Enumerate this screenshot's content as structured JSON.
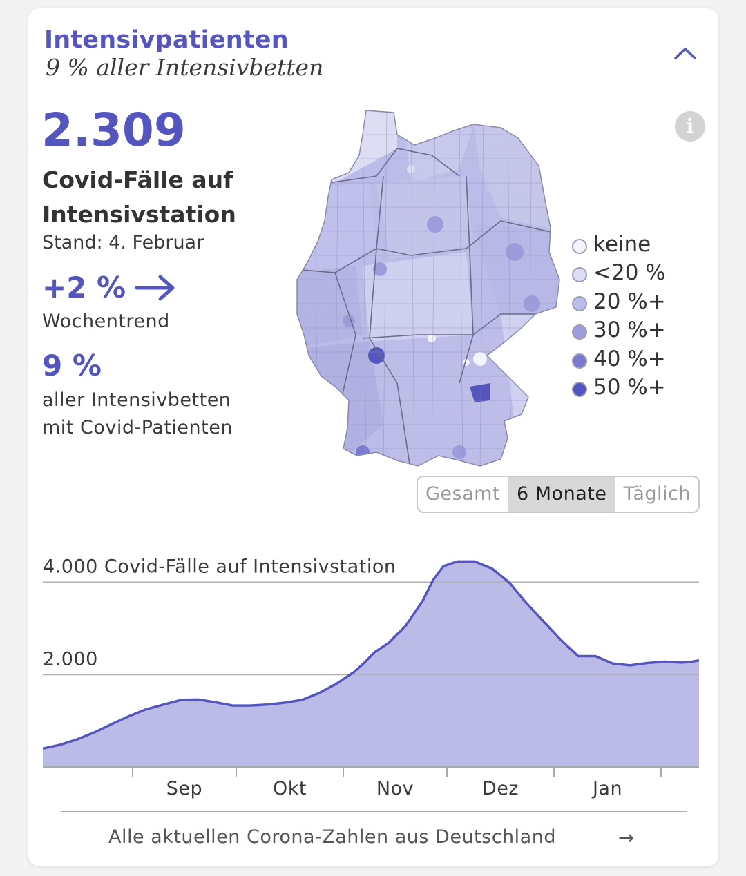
{
  "header": {
    "title": "Intensivpatienten",
    "subtitle": "9 % aller Intensivbetten"
  },
  "summary": {
    "count": "2.309",
    "count_label": "Covid-Fälle auf Intensivstation",
    "date_label": "Stand: 4. Februar",
    "trend_value": "+2 %",
    "trend_label": "Wochentrend",
    "share_value": "9 %",
    "share_label_line1": "aller Intensivbetten",
    "share_label_line2": "mit Covid-Patienten"
  },
  "map": {
    "legend": [
      {
        "label": "keine",
        "color": "#f4f4fb"
      },
      {
        "label": "<20 %",
        "color": "#dcdcf2"
      },
      {
        "label": "20 %+",
        "color": "#bcbce8"
      },
      {
        "label": "30 %+",
        "color": "#9c9cdb"
      },
      {
        "label": "40 %+",
        "color": "#7a7ad0"
      },
      {
        "label": "50 %+",
        "color": "#5456bd"
      }
    ]
  },
  "range_tabs": {
    "items": [
      "Gesamt",
      "6 Monate",
      "Täglich"
    ],
    "selected": "6 Monate"
  },
  "footer": {
    "link_text": "Alle aktuellen Corona-Zahlen aus Deutschland",
    "arrow": "→"
  },
  "colors": {
    "accent": "#5456bd",
    "area_fill": "#bbbbe8",
    "area_line": "#5456bd"
  },
  "chart_data": {
    "type": "area",
    "title": "Covid-Fälle auf Intensivstation",
    "gridline_labels": [
      {
        "value": 4000,
        "label": "4.000 Covid-Fälle auf Intensivstation"
      },
      {
        "value": 2000,
        "label": "2.000"
      }
    ],
    "xtick_labels": [
      "Sep",
      "Okt",
      "Nov",
      "Dez",
      "Jan"
    ],
    "x_range_days": [
      0,
      190
    ],
    "month_boundaries_days": [
      26,
      56,
      87,
      117,
      148,
      179
    ],
    "month_label_days": [
      41,
      71.5,
      102,
      132.5,
      163.5
    ],
    "ylim": [
      0,
      4800
    ],
    "series": [
      {
        "name": "Covid-Fälle auf Intensivstation",
        "x": [
          0,
          5,
          10,
          15,
          20,
          25,
          30,
          35,
          40,
          45,
          50,
          55,
          60,
          65,
          70,
          75,
          80,
          85,
          90,
          93,
          96,
          100,
          105,
          110,
          113,
          116,
          120,
          125,
          130,
          135,
          140,
          145,
          150,
          155,
          160,
          165,
          170,
          175,
          180,
          185,
          188,
          190
        ],
        "values": [
          400,
          480,
          600,
          750,
          930,
          1100,
          1250,
          1350,
          1450,
          1460,
          1400,
          1330,
          1330,
          1350,
          1390,
          1450,
          1600,
          1800,
          2050,
          2250,
          2480,
          2680,
          3050,
          3600,
          4050,
          4350,
          4450,
          4450,
          4300,
          4000,
          3550,
          3150,
          2750,
          2400,
          2400,
          2240,
          2200,
          2250,
          2280,
          2260,
          2280,
          2309
        ]
      }
    ]
  }
}
